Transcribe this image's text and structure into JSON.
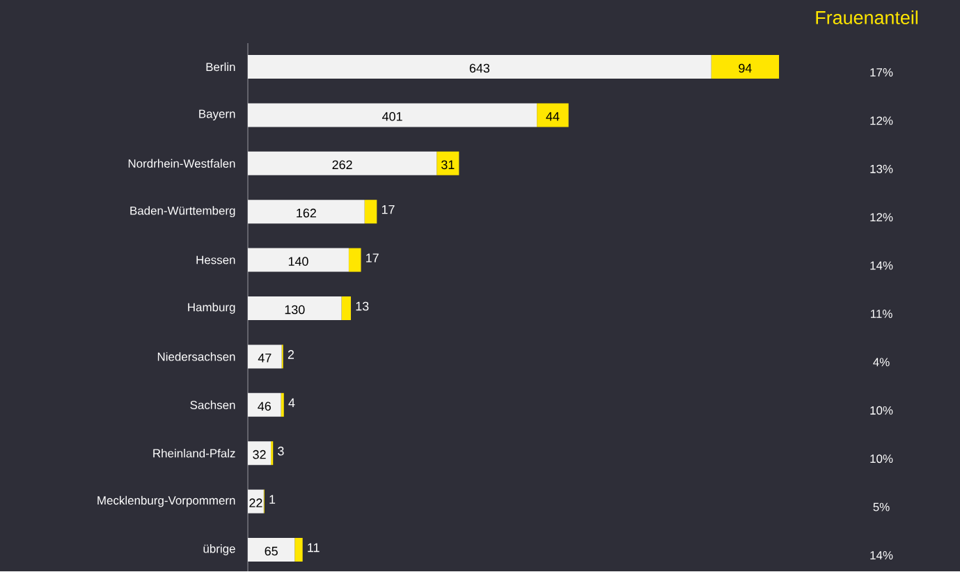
{
  "chart_data": {
    "type": "bar",
    "orientation": "horizontal",
    "stacked": true,
    "data_labels": true,
    "categories": [
      "Berlin",
      "Bayern",
      "Nordrhein-Westfalen",
      "Baden-Württemberg",
      "Hessen",
      "Hamburg",
      "Niedersachsen",
      "Sachsen",
      "Rheinland-Pfalz",
      "Mecklenburg-Vorpommern",
      "übrige"
    ],
    "series": [
      {
        "color": "#f2f2f2",
        "values": [
          643,
          401,
          262,
          162,
          140,
          130,
          47,
          46,
          32,
          22,
          65
        ]
      },
      {
        "color": "#ffe600",
        "values": [
          94,
          44,
          31,
          17,
          17,
          13,
          2,
          4,
          3,
          1,
          11
        ]
      }
    ],
    "annotations": [
      "Frauenanteil",
      "17%",
      "12%",
      "13%",
      "12%",
      "14%",
      "11%",
      "4%",
      "10%",
      "10%",
      "5%",
      "14%"
    ]
  }
}
